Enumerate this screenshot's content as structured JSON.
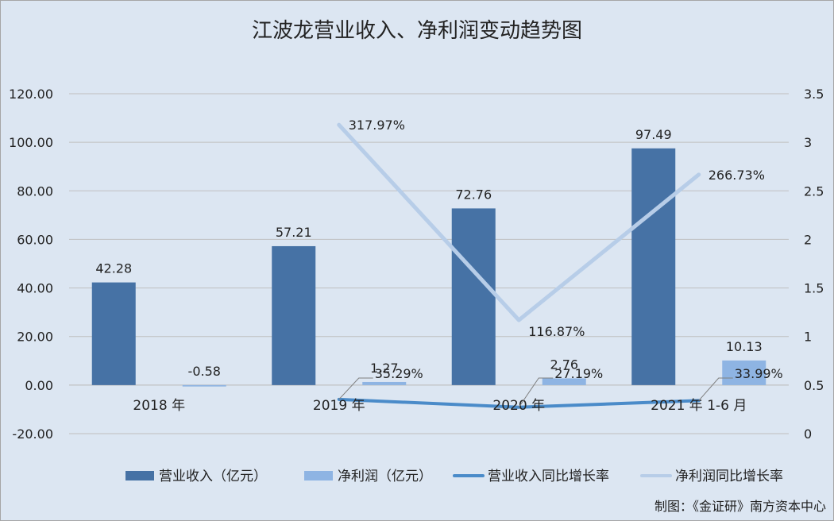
{
  "chart_data": {
    "type": "bar",
    "title": "江波龙营业收入、净利润变动趋势图",
    "categories": [
      "2018 年",
      "2019 年",
      "2020 年",
      "2021 年 1-6 月"
    ],
    "left_axis": {
      "min": -20,
      "max": 120,
      "ticks": [
        "120.00",
        "100.00",
        "80.00",
        "60.00",
        "40.00",
        "20.00",
        "0.00",
        "-20.00"
      ]
    },
    "right_axis": {
      "min": 0,
      "max": 3.5,
      "ticks": [
        "3.5",
        "3",
        "2.5",
        "2",
        "1.5",
        "1",
        "0.5",
        "0"
      ]
    },
    "grid": true,
    "legend_position": "bottom",
    "series": [
      {
        "name": "营业收入（亿元）",
        "kind": "bar",
        "axis": "left",
        "color": "#4672a5",
        "values": [
          42.28,
          57.21,
          72.76,
          97.49
        ],
        "labels": [
          "42.28",
          "57.21",
          "72.76",
          "97.49"
        ]
      },
      {
        "name": "净利润（亿元）",
        "kind": "bar",
        "axis": "left",
        "color": "#8eb4e3",
        "values": [
          -0.58,
          1.27,
          2.76,
          10.13
        ],
        "labels": [
          "-0.58",
          "1.27",
          "2.76",
          "10.13"
        ]
      },
      {
        "name": "营业收入同比增长率",
        "kind": "line",
        "axis": "right",
        "color": "#4a8bc9",
        "x": [
          "2019 年",
          "2020 年",
          "2021 年 1-6 月"
        ],
        "values": [
          0.3529,
          0.2719,
          0.3399
        ],
        "labels": [
          "35.29%",
          "27.19%",
          "33.99%"
        ]
      },
      {
        "name": "净利润同比增长率",
        "kind": "line",
        "axis": "right",
        "color": "#b7cde8",
        "x": [
          "2019 年",
          "2020 年",
          "2021 年 1-6 月"
        ],
        "values": [
          3.1797,
          1.1687,
          2.6673
        ],
        "labels": [
          "317.97%",
          "116.87%",
          "266.73%"
        ]
      }
    ]
  },
  "credit": "制图：《金证研》南方资本中心"
}
